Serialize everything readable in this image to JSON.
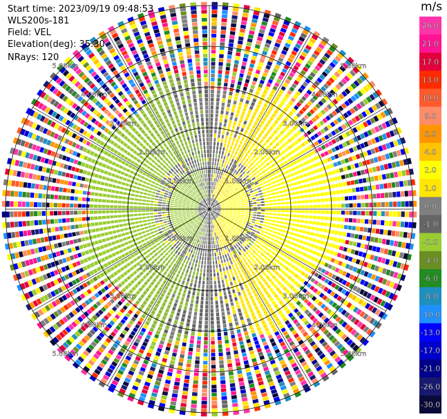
{
  "header": {
    "start_time": "Start time: 2023/09/19 09:48:53",
    "instrument": "WLS200s-181",
    "field": "Field: VEL",
    "elevation": "Elevation(deg): 35.30",
    "nrays": "NRays: 120"
  },
  "colorbar": {
    "title": "m/s",
    "ticks": [
      "26.0",
      "21.0",
      "17.0",
      "13.0",
      "10.0",
      "8.0",
      "6.0",
      "4.0",
      "2.0",
      "1.0",
      "0.0",
      "-1.0",
      "-2.0",
      "-4.0",
      "-6.0",
      "-8.0",
      "-10.0",
      "-13.0",
      "-17.0",
      "-21.0",
      "-26.0",
      "-30.0"
    ],
    "colors": [
      "#ff33aa",
      "#ff1493",
      "#e4003b",
      "#ff2a00",
      "#ff5a2e",
      "#ff8c69",
      "#ff9500",
      "#ffc400",
      "#ffff00",
      "#ffe600",
      "#808080",
      "#666666",
      "#9acd32",
      "#6b8e23",
      "#228b22",
      "#1e8fbf",
      "#1e90ff",
      "#0000ff",
      "#0000cd",
      "#00008b",
      "#191970",
      "#0a0a3a"
    ]
  },
  "chart_data": {
    "type": "heatmap",
    "projection": "polar PPI",
    "field": "VEL",
    "units": "m/s",
    "nrays": 120,
    "elevation_deg": 35.3,
    "range_ring_labels": [
      "1.00km",
      "2.00km",
      "3.00km",
      "4.00km",
      "5.00km"
    ],
    "range_rings_km": [
      1,
      2,
      3,
      4,
      5
    ],
    "max_range_km": 5.1,
    "pattern": "near-field (< ~3.2 km): negative velocities (green, about -2 m/s) to the west, positive velocities (yellow, about +2 m/s) to the east, gray near-zero band near the center; far field (> ~3.2 km): noisy multicolored speckle"
  }
}
